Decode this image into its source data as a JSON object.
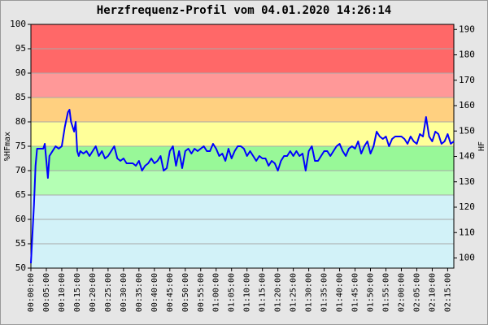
{
  "chart_data": {
    "type": "line",
    "title": "Herzfrequenz-Profil vom 04.01.2020 14:26:14",
    "y_label": "%HFmax",
    "y2_label": "HF",
    "color": "#0000ff",
    "grid": true,
    "xlim": [
      0,
      137
    ],
    "ylim": [
      50,
      100
    ],
    "y2lim": [
      96,
      192
    ],
    "yticks": [
      50,
      55,
      60,
      65,
      70,
      75,
      80,
      85,
      90,
      95,
      100
    ],
    "y2ticks": [
      100,
      110,
      120,
      130,
      140,
      150,
      160,
      170,
      180,
      190
    ],
    "xticks": [
      {
        "value": 0,
        "label": "00:00:00"
      },
      {
        "value": 5,
        "label": "00:05:00"
      },
      {
        "value": 10,
        "label": "00:10:00"
      },
      {
        "value": 15,
        "label": "00:15:00"
      },
      {
        "value": 20,
        "label": "00:20:00"
      },
      {
        "value": 25,
        "label": "00:25:00"
      },
      {
        "value": 30,
        "label": "00:30:00"
      },
      {
        "value": 35,
        "label": "00:35:00"
      },
      {
        "value": 40,
        "label": "00:40:00"
      },
      {
        "value": 45,
        "label": "00:45:00"
      },
      {
        "value": 50,
        "label": "00:50:00"
      },
      {
        "value": 55,
        "label": "00:55:00"
      },
      {
        "value": 60,
        "label": "01:00:00"
      },
      {
        "value": 65,
        "label": "01:05:00"
      },
      {
        "value": 70,
        "label": "01:10:00"
      },
      {
        "value": 75,
        "label": "01:15:00"
      },
      {
        "value": 80,
        "label": "01:20:00"
      },
      {
        "value": 85,
        "label": "01:25:00"
      },
      {
        "value": 90,
        "label": "01:30:00"
      },
      {
        "value": 95,
        "label": "01:35:00"
      },
      {
        "value": 100,
        "label": "01:40:00"
      },
      {
        "value": 105,
        "label": "01:45:00"
      },
      {
        "value": 110,
        "label": "01:50:00"
      },
      {
        "value": 115,
        "label": "01:55:00"
      },
      {
        "value": 120,
        "label": "02:00:00"
      },
      {
        "value": 125,
        "label": "02:05:00"
      },
      {
        "value": 130,
        "label": "02:10:00"
      },
      {
        "value": 135,
        "label": "02:15:00"
      }
    ],
    "zones": [
      {
        "from": 50,
        "to": 65,
        "color": "#d2f2f8"
      },
      {
        "from": 65,
        "to": 70,
        "color": "#b4ffb4"
      },
      {
        "from": 70,
        "to": 75,
        "color": "#98f898"
      },
      {
        "from": 75,
        "to": 80,
        "color": "#ffff99"
      },
      {
        "from": 80,
        "to": 85,
        "color": "#ffd080"
      },
      {
        "from": 85,
        "to": 90,
        "color": "#ff9898"
      },
      {
        "from": 90,
        "to": 100,
        "color": "#ff6868"
      }
    ],
    "x": [
      0,
      0.5,
      1,
      1.5,
      2,
      3,
      4,
      4.5,
      5,
      5.5,
      6,
      7,
      8,
      9,
      10,
      10.5,
      11,
      12,
      12.5,
      13,
      14,
      14.5,
      15,
      15.5,
      16,
      17,
      18,
      19,
      20,
      21,
      22,
      23,
      24,
      25,
      26,
      27,
      28,
      29,
      30,
      31,
      32,
      33,
      34,
      35,
      36,
      37,
      38,
      39,
      40,
      41,
      42,
      43,
      44,
      45,
      46,
      47,
      48,
      49,
      50,
      51,
      52,
      53,
      54,
      55,
      56,
      57,
      58,
      59,
      60,
      61,
      62,
      63,
      64,
      65,
      66,
      67,
      68,
      69,
      70,
      71,
      72,
      73,
      74,
      75,
      76,
      77,
      78,
      79,
      80,
      81,
      82,
      83,
      84,
      85,
      86,
      87,
      88,
      89,
      90,
      91,
      92,
      93,
      94,
      95,
      96,
      97,
      98,
      99,
      100,
      101,
      102,
      103,
      104,
      105,
      106,
      107,
      108,
      109,
      110,
      111,
      112,
      113,
      114,
      115,
      116,
      117,
      118,
      119,
      120,
      121,
      122,
      123,
      124,
      125,
      126,
      127,
      128,
      129,
      130,
      131,
      132,
      133,
      134,
      135,
      136,
      137
    ],
    "values": [
      51,
      57,
      63,
      71,
      74.5,
      74.5,
      74.5,
      75.5,
      72,
      68.5,
      73,
      74,
      75,
      74.5,
      75,
      77,
      79,
      82,
      82.5,
      80,
      78,
      80,
      74,
      73,
      74,
      73.5,
      74,
      73,
      74,
      75,
      73,
      74,
      72.5,
      73,
      74,
      75,
      72.5,
      72,
      72.5,
      71.5,
      71.5,
      71.5,
      71,
      72,
      70,
      71,
      71.5,
      72.5,
      71.5,
      72,
      73,
      70,
      70.5,
      74,
      75,
      71,
      74,
      70.5,
      74,
      74.5,
      73.5,
      74.5,
      74,
      74.5,
      75,
      74,
      74,
      75.5,
      74.5,
      73,
      73.5,
      72,
      74.5,
      72.5,
      74,
      75,
      75,
      74.5,
      73,
      74,
      73,
      72,
      73,
      72.5,
      72.5,
      71,
      72,
      71.5,
      70,
      72,
      73,
      73,
      74,
      73,
      74,
      73,
      73.5,
      70,
      74,
      75,
      72,
      72,
      73,
      74,
      74,
      73,
      74,
      75,
      75.5,
      74,
      73,
      74.5,
      75,
      74.5,
      76,
      73.5,
      75,
      76,
      73.5,
      75,
      78,
      77,
      76.5,
      77,
      75,
      76.5,
      77,
      77,
      77,
      76.5,
      75.5,
      77,
      76,
      75.5,
      77.5,
      77,
      81,
      77,
      76,
      78,
      77.5,
      75.5,
      76,
      77.5,
      75.5,
      76
    ]
  }
}
